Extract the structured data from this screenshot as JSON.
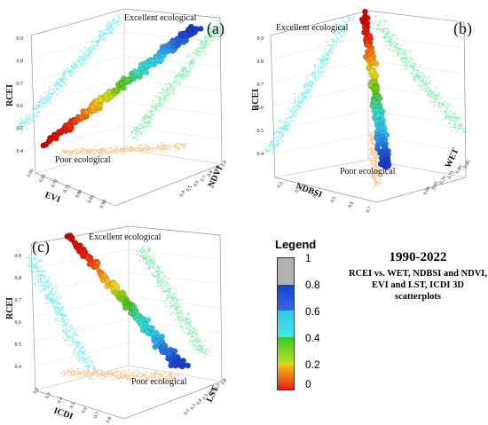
{
  "panels": [
    {
      "id": "a",
      "label": "(a)",
      "z_axis": "RCEI",
      "x_axis": "EVI",
      "y_axis": "NDVI",
      "z_ticks": [
        "0.9",
        "0.8",
        "0.7",
        "0.6",
        "0.5",
        "0.4"
      ],
      "x_ticks": [
        "0.60",
        "0.65",
        "0.70",
        "0.75",
        "0.80",
        "0.85",
        "0.90"
      ],
      "y_ticks": [
        "0.4",
        "0.5",
        "0.6",
        "0.7",
        "0.8",
        "0.9",
        "1.0"
      ],
      "top_note": "Excellent ecological",
      "bottom_note": "Poor ecological"
    },
    {
      "id": "b",
      "label": "(b)",
      "z_axis": "RCEI",
      "x_axis": "NDBSI",
      "y_axis": "WET",
      "z_ticks": [
        "0.9",
        "0.8",
        "0.7",
        "0.6",
        "0.5",
        "0.4"
      ],
      "x_ticks": [
        "0.2",
        "0.3",
        "0.4",
        "0.5",
        "0.6",
        "0.7"
      ],
      "y_ticks": [
        "0.60",
        "0.65",
        "0.70",
        "0.75",
        "0.80",
        "0.85"
      ],
      "top_note": "Excellent ecological",
      "bottom_note": "Poor ecological"
    },
    {
      "id": "c",
      "label": "(c)",
      "z_axis": "RCEI",
      "x_axis": "ICDI",
      "y_axis": "LST",
      "z_ticks": [
        "0.9",
        "0.8",
        "0.7",
        "0.6",
        "0.5",
        "0.4"
      ],
      "x_ticks": [
        "0.2",
        "0.3",
        "0.4",
        "0.5",
        "0.6",
        "0.7",
        "0.8"
      ],
      "y_ticks": [
        "0.2",
        "0.3",
        "0.4",
        "0.5",
        "0.6",
        "0.7",
        "0.8"
      ],
      "top_note": "Excellent ecological",
      "bottom_note": "Poor ecological"
    }
  ],
  "legend": {
    "title": "Legend",
    "ticks": [
      "1",
      "0.8",
      "0.6",
      "0.4",
      "0.2",
      "0"
    ],
    "colors": [
      "#b0b0b0",
      "#1c3fd0",
      "#33d8e8",
      "#4ccf1a",
      "#f0e020",
      "#e01010",
      "#111111"
    ]
  },
  "info": {
    "period": "1990-2022",
    "description": "RCEI vs. WET, NDBSI and NDVI, EVI and LST, ICDI 3D scatterplots"
  },
  "chart_data": [
    {
      "type": "scatter",
      "title": "",
      "zlabel": "RCEI",
      "xlabel": "EVI",
      "ylabel": "NDVI",
      "zlim": [
        0.35,
        0.95
      ],
      "series_colors": {
        "projection_xz": "#7ff0f0",
        "projection_yz": "#8ef0b0",
        "projection_xy": "#f6cc9a"
      }
    },
    {
      "type": "scatter",
      "title": "",
      "zlabel": "RCEI",
      "xlabel": "NDBSI",
      "ylabel": "WET",
      "zlim": [
        0.35,
        0.95
      ],
      "series_colors": {
        "projection_xz": "#7ff0f0",
        "projection_yz": "#8ef0b0",
        "projection_xy": "#f6cc9a"
      }
    },
    {
      "type": "scatter",
      "title": "",
      "zlabel": "RCEI",
      "xlabel": "ICDI",
      "ylabel": "LST",
      "zlim": [
        0.35,
        0.95
      ],
      "series_colors": {
        "projection_xz": "#7ff0f0",
        "projection_yz": "#8ef0b0",
        "projection_xy": "#f6cc9a"
      }
    }
  ]
}
